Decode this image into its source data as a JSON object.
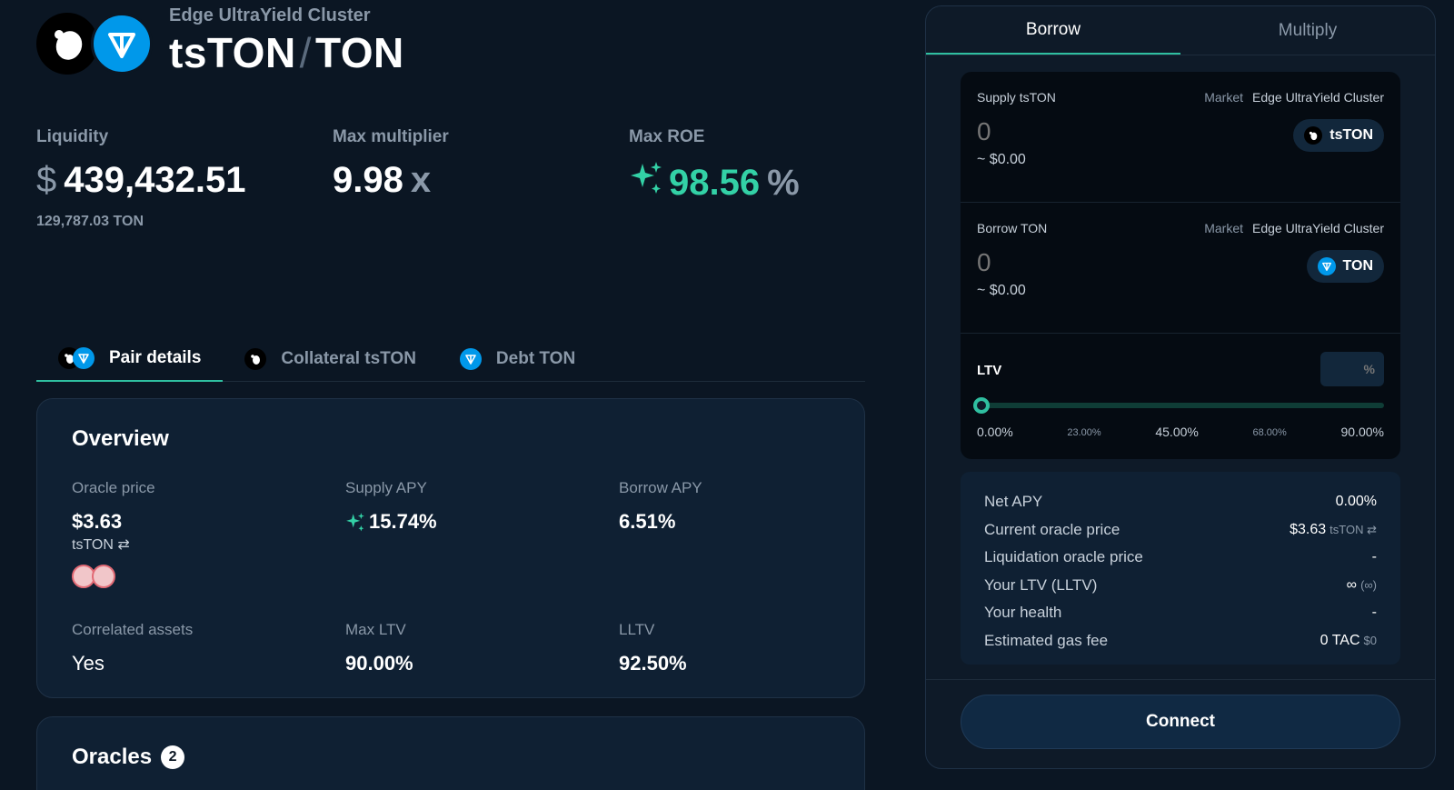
{
  "header": {
    "cluster": "Edge UltraYield Cluster",
    "base": "tsTON",
    "separator": "/",
    "quote": "TON"
  },
  "stats": {
    "liquidity": {
      "label": "Liquidity",
      "currency": "$",
      "value": "439,432.51",
      "sub": "129,787.03 TON"
    },
    "max_multiplier": {
      "label": "Max multiplier",
      "value": "9.98",
      "suffix": "x"
    },
    "max_roe": {
      "label": "Max ROE",
      "value": "98.56",
      "suffix": "%",
      "color": "#33d1a6"
    }
  },
  "tabs": [
    {
      "label": "Pair details"
    },
    {
      "label": "Collateral tsTON"
    },
    {
      "label": "Debt TON"
    }
  ],
  "overview": {
    "title": "Overview",
    "oracle_price": {
      "label": "Oracle price",
      "value": "$3.63",
      "unit": "tsTON ⇄"
    },
    "supply_apy": {
      "label": "Supply APY",
      "value": "15.74%"
    },
    "borrow_apy": {
      "label": "Borrow APY",
      "value": "6.51%"
    },
    "correlated": {
      "label": "Correlated assets",
      "value": "Yes"
    },
    "max_ltv": {
      "label": "Max LTV",
      "value": "90.00%"
    },
    "lltv": {
      "label": "LLTV",
      "value": "92.50%"
    }
  },
  "oracles": {
    "title": "Oracles",
    "count": "2"
  },
  "panel": {
    "tabs": [
      "Borrow",
      "Multiply"
    ],
    "supply": {
      "label": "Supply tsTON",
      "market_label": "Market",
      "market": "Edge UltraYield Cluster",
      "amount": "0",
      "usd": "~ $0.00",
      "token": "tsTON"
    },
    "borrow": {
      "label": "Borrow TON",
      "market_label": "Market",
      "market": "Edge UltraYield Cluster",
      "amount": "0",
      "usd": "~ $0.00",
      "token": "TON"
    },
    "ltv": {
      "label": "LTV",
      "placeholder": "%",
      "value_fraction": 0,
      "ticks": [
        "0.00%",
        "23.00%",
        "45.00%",
        "68.00%",
        "90.00%"
      ]
    },
    "summary": [
      {
        "label": "Net APY",
        "value": "0.00%",
        "extra": ""
      },
      {
        "label": "Current oracle price",
        "value": "$3.63",
        "extra": "tsTON ⇄"
      },
      {
        "label": "Liquidation oracle price",
        "value": "-",
        "extra": ""
      },
      {
        "label": "Your LTV (LLTV)",
        "value": "∞",
        "extra": "(∞)"
      },
      {
        "label": "Your health",
        "value": "-",
        "extra": ""
      },
      {
        "label": "Estimated gas fee",
        "value": "0 TAC",
        "extra": "$0"
      }
    ],
    "connect": "Connect"
  },
  "colors": {
    "accent": "#2fbfa0",
    "ton_blue": "#0098ea",
    "background": "#0b1623"
  }
}
